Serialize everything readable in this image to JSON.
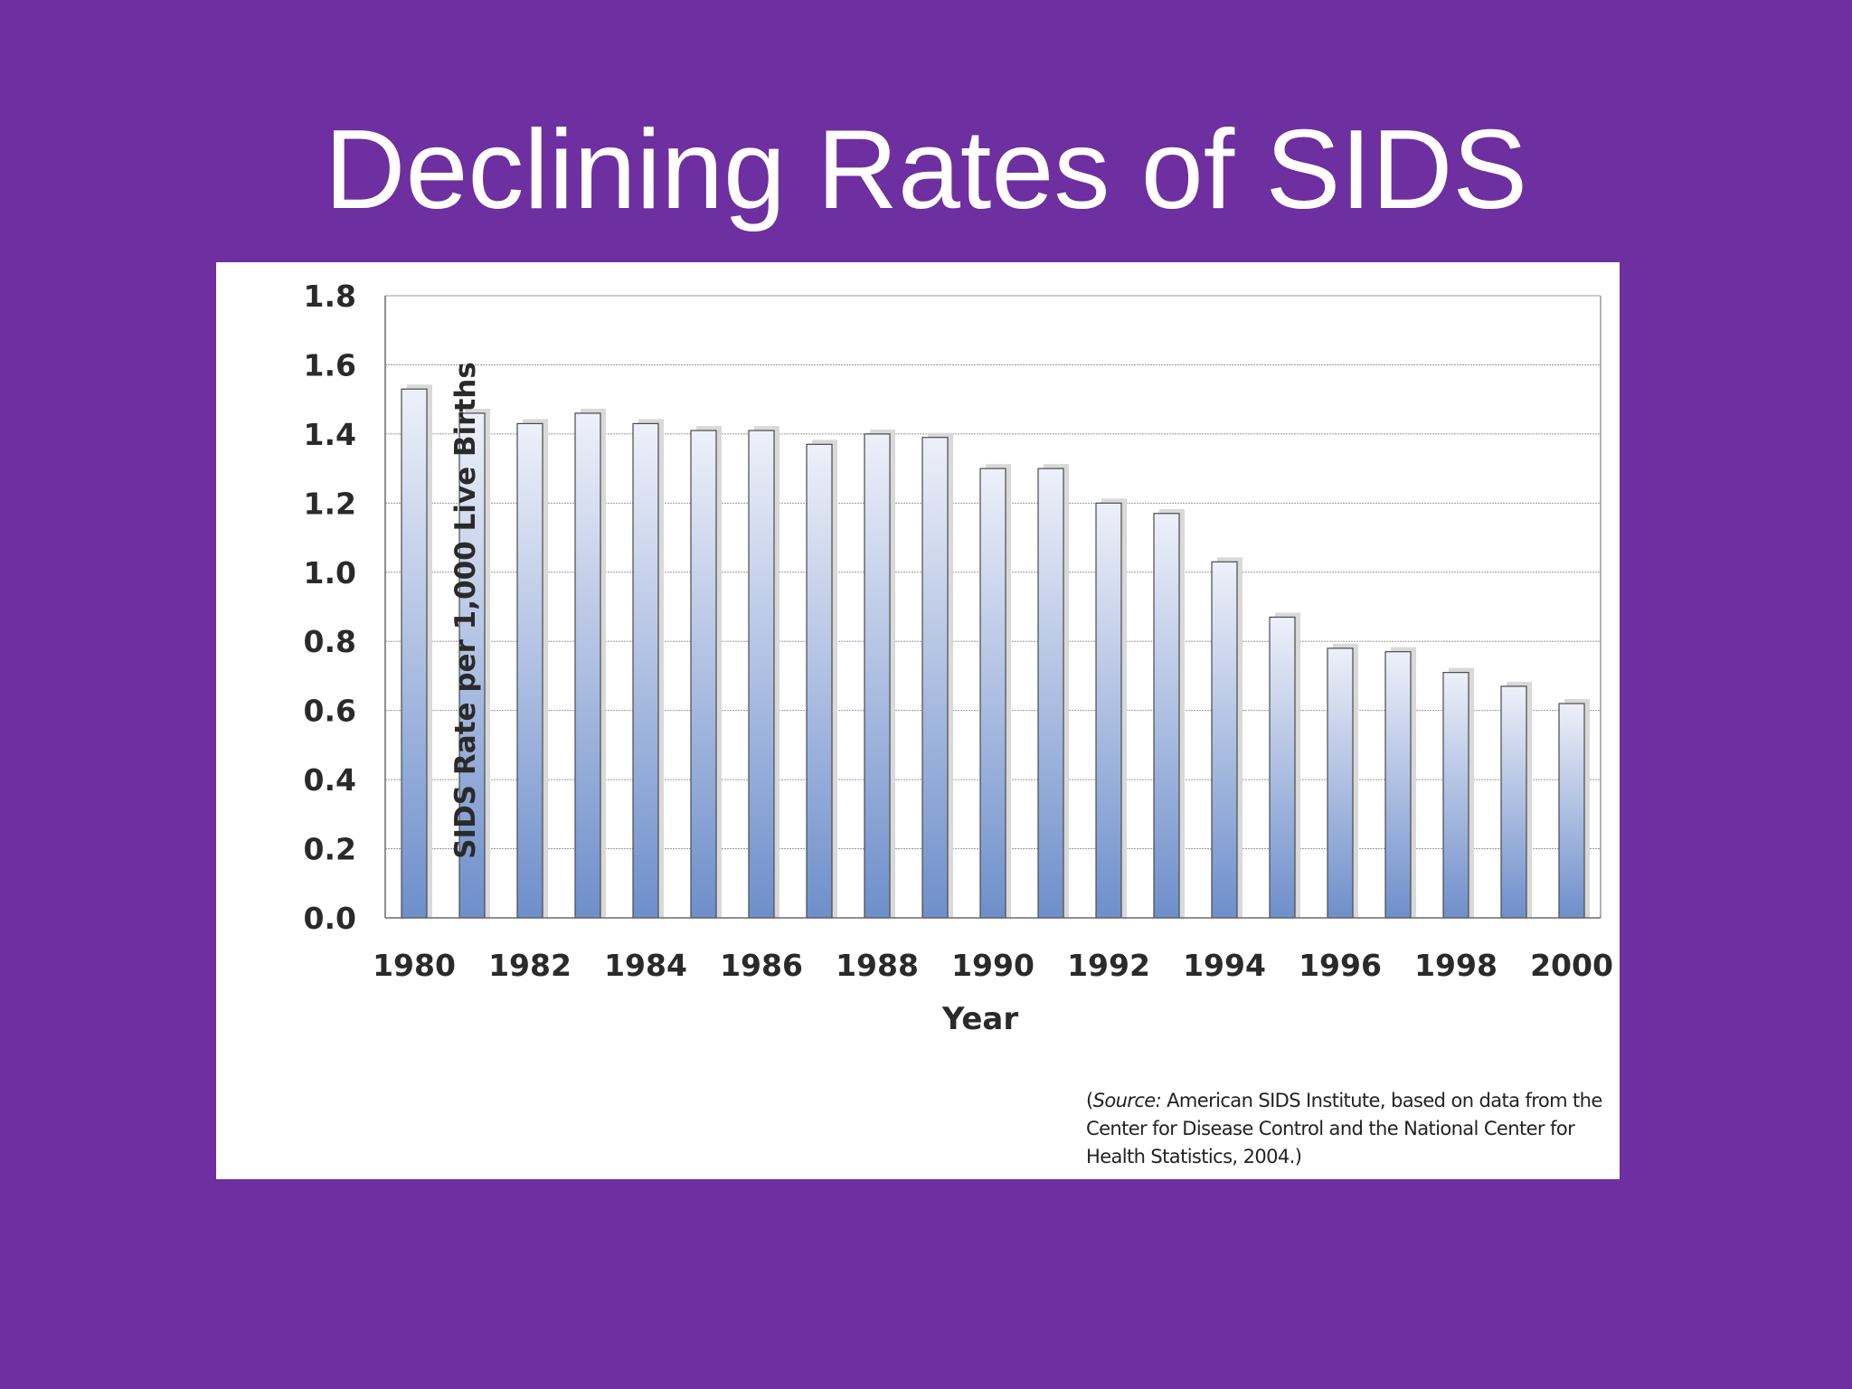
{
  "slide": {
    "title": "Declining Rates of SIDS",
    "background_color": "#6e2fa0"
  },
  "source": {
    "open": "(",
    "label": "Source:",
    "text": " American SIDS Institute, based on data from the Center for Disease Control and the National Center for Health Statistics, 2004.)"
  },
  "chart_data": {
    "type": "bar",
    "xlabel": "Year",
    "ylabel": "SIDS Rate per 1,000 Live Births",
    "categories": [
      "1980",
      "1981",
      "1982",
      "1983",
      "1984",
      "1985",
      "1986",
      "1987",
      "1988",
      "1989",
      "1990",
      "1991",
      "1992",
      "1993",
      "1994",
      "1995",
      "1996",
      "1997",
      "1998",
      "1999",
      "2000"
    ],
    "values": [
      1.53,
      1.46,
      1.43,
      1.46,
      1.43,
      1.41,
      1.41,
      1.37,
      1.4,
      1.39,
      1.3,
      1.3,
      1.2,
      1.17,
      1.03,
      0.87,
      0.78,
      0.77,
      0.71,
      0.67,
      0.62
    ],
    "x_tick_labels": [
      "1980",
      "1982",
      "1984",
      "1986",
      "1988",
      "1990",
      "1992",
      "1994",
      "1996",
      "1998",
      "2000"
    ],
    "y_tick_labels": [
      "0.0",
      "0.2",
      "0.4",
      "0.6",
      "0.8",
      "1.0",
      "1.2",
      "1.4",
      "1.6",
      "1.8"
    ],
    "ylim": [
      0,
      1.8
    ],
    "grid": true,
    "legend": "none",
    "bar_color_top": "#eef0f9",
    "bar_color_bottom": "#6e8fcb"
  }
}
